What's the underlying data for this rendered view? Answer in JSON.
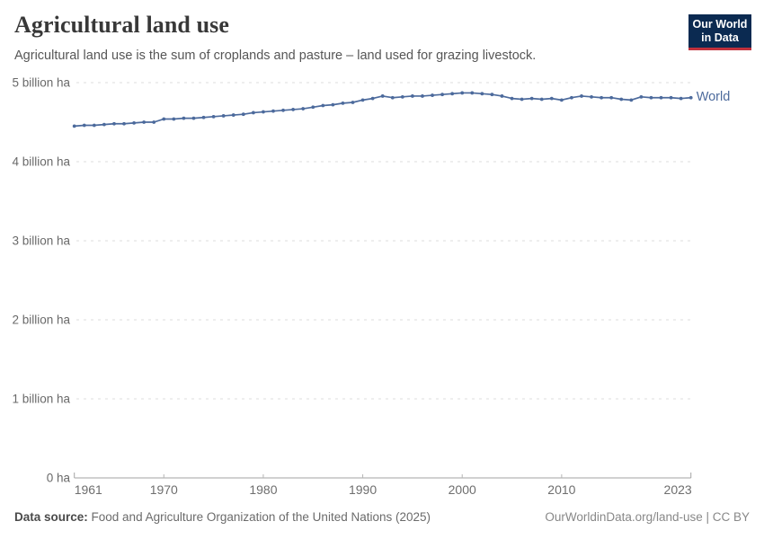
{
  "header": {
    "title": "Agricultural land use",
    "subtitle": "Agricultural land use is the sum of croplands and pasture – land used for grazing livestock.",
    "logo": {
      "line1": "Our World",
      "line2": "in Data",
      "bg_color": "#0b2a51",
      "accent_color": "#c0313c"
    }
  },
  "footer": {
    "data_source_label": "Data source:",
    "data_source_value": " Food and Agriculture Organization of the United Nations (2025)",
    "attribution": "OurWorldinData.org/land-use | CC BY"
  },
  "chart_data": {
    "type": "line",
    "title": "Agricultural land use",
    "unit": "billion ha",
    "xlabel": "",
    "ylabel": "",
    "xlim": [
      1961,
      2023
    ],
    "ylim": [
      0,
      5
    ],
    "grid": "horizontal-dashed",
    "legend_position": "end-of-line",
    "x_ticks": [
      1961,
      1970,
      1980,
      1990,
      2000,
      2010,
      2023
    ],
    "y_ticks": [
      {
        "value": 0,
        "label": "0 ha"
      },
      {
        "value": 1,
        "label": "1 billion ha"
      },
      {
        "value": 2,
        "label": "2 billion ha"
      },
      {
        "value": 3,
        "label": "3 billion ha"
      },
      {
        "value": 4,
        "label": "4 billion ha"
      },
      {
        "value": 5,
        "label": "5 billion ha"
      }
    ],
    "x": [
      1961,
      1962,
      1963,
      1964,
      1965,
      1966,
      1967,
      1968,
      1969,
      1970,
      1971,
      1972,
      1973,
      1974,
      1975,
      1976,
      1977,
      1978,
      1979,
      1980,
      1981,
      1982,
      1983,
      1984,
      1985,
      1986,
      1987,
      1988,
      1989,
      1990,
      1991,
      1992,
      1993,
      1994,
      1995,
      1996,
      1997,
      1998,
      1999,
      2000,
      2001,
      2002,
      2003,
      2004,
      2005,
      2006,
      2007,
      2008,
      2009,
      2010,
      2011,
      2012,
      2013,
      2014,
      2015,
      2016,
      2017,
      2018,
      2019,
      2020,
      2021,
      2022,
      2023
    ],
    "series": [
      {
        "name": "World",
        "color": "#4c6a9c",
        "values": [
          4.45,
          4.46,
          4.46,
          4.47,
          4.48,
          4.48,
          4.49,
          4.5,
          4.5,
          4.54,
          4.54,
          4.55,
          4.55,
          4.56,
          4.57,
          4.58,
          4.59,
          4.6,
          4.62,
          4.63,
          4.64,
          4.65,
          4.66,
          4.67,
          4.69,
          4.71,
          4.72,
          4.74,
          4.75,
          4.78,
          4.8,
          4.83,
          4.81,
          4.82,
          4.83,
          4.83,
          4.84,
          4.85,
          4.86,
          4.87,
          4.87,
          4.86,
          4.85,
          4.83,
          4.8,
          4.79,
          4.8,
          4.79,
          4.8,
          4.78,
          4.81,
          4.83,
          4.82,
          4.81,
          4.81,
          4.79,
          4.78,
          4.82,
          4.81,
          4.81,
          4.81,
          4.8,
          4.81
        ]
      }
    ]
  }
}
